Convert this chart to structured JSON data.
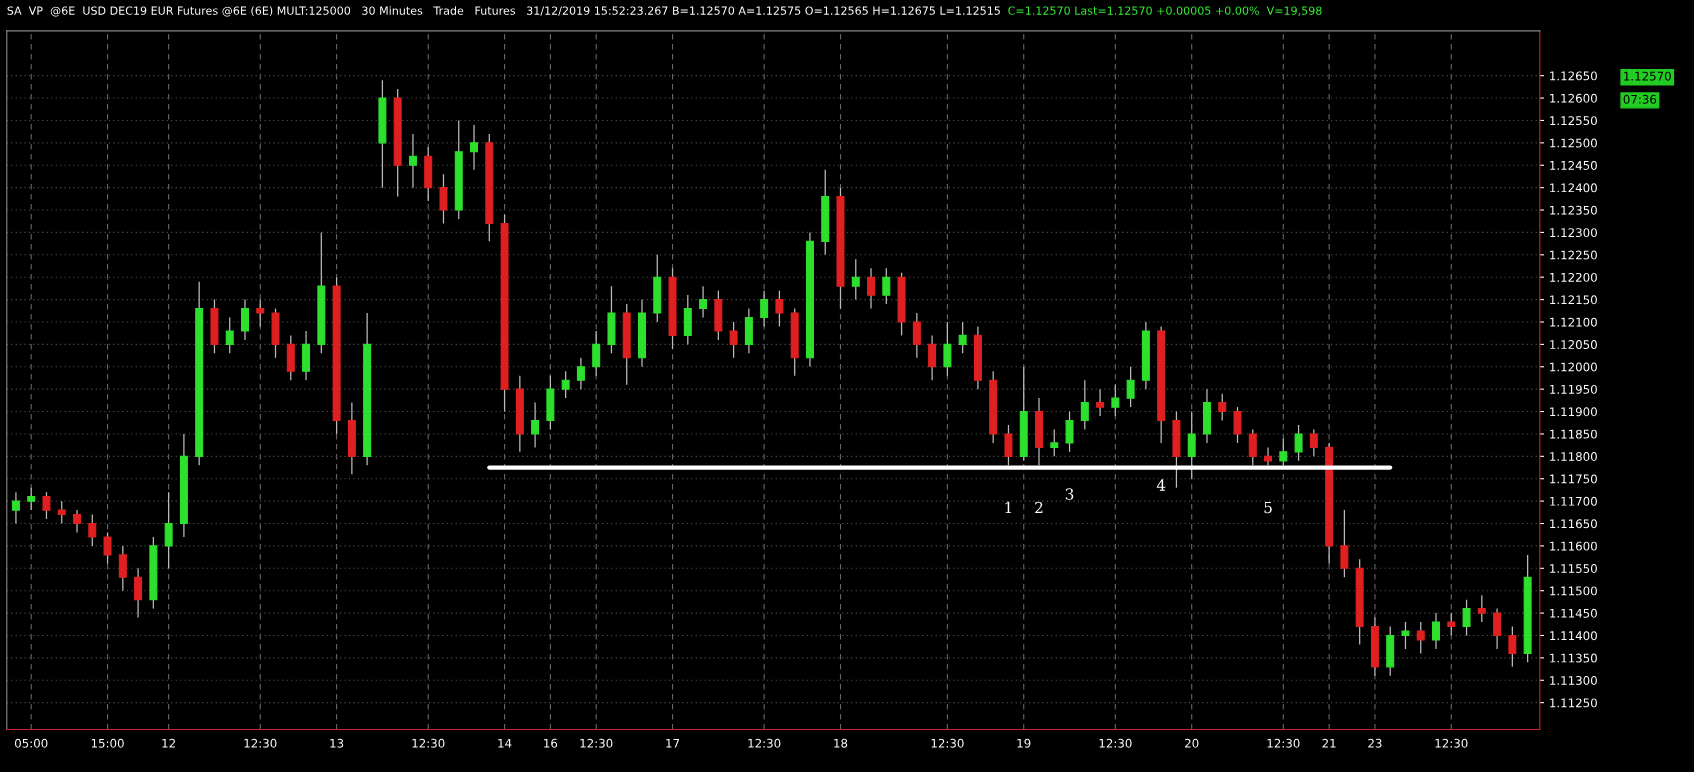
{
  "chart_data": {
    "type": "candlestick",
    "title": "SA  VP  @6E  USD DEC19 EUR Futures @6E (6E) MULT:125000   30 Minutes   Trade   Futures   31/12/2019 15:52:23.267 B=1.12570 A=1.12575 O=1.12565 H=1.12675 L=1.12515",
    "subtitle": "C=1.12570 Last=1.12570 +0.00005 +0.00%  V=19,598",
    "categories": [
      null,
      "05:00",
      null,
      null,
      null,
      null,
      "15:00",
      null,
      null,
      null,
      "12",
      null,
      null,
      null,
      null,
      null,
      "12:30",
      null,
      null,
      null,
      null,
      "13",
      null,
      null,
      null,
      null,
      null,
      "12:30",
      null,
      null,
      null,
      null,
      "14",
      null,
      null,
      "16",
      null,
      null,
      "12:30",
      null,
      null,
      null,
      null,
      "17",
      null,
      null,
      null,
      null,
      null,
      "12:30",
      null,
      null,
      null,
      null,
      "18",
      null,
      null,
      null,
      null,
      null,
      null,
      "12:30",
      null,
      null,
      null,
      null,
      "19",
      null,
      null,
      null,
      null,
      null,
      "12:30",
      null,
      null,
      null,
      null,
      "20",
      null,
      null,
      null,
      null,
      null,
      "12:30",
      null,
      null,
      "21",
      null,
      null,
      "23",
      null,
      null,
      null,
      null,
      "12:30",
      null,
      null,
      null,
      null,
      null
    ],
    "series": [
      {
        "ohlc": [
          [
            1.1168,
            1.1172,
            1.1165,
            1.117
          ],
          [
            1.117,
            1.1173,
            1.1168,
            1.1171
          ],
          [
            1.1171,
            1.1172,
            1.1166,
            1.1168
          ],
          [
            1.1168,
            1.117,
            1.1165,
            1.1167
          ],
          [
            1.1167,
            1.1168,
            1.1163,
            1.1165
          ],
          [
            1.1165,
            1.1167,
            1.116,
            1.1162
          ],
          [
            1.1162,
            1.1163,
            1.1156,
            1.1158
          ],
          [
            1.1158,
            1.116,
            1.115,
            1.1153
          ],
          [
            1.1153,
            1.1155,
            1.1144,
            1.1148
          ],
          [
            1.1148,
            1.1162,
            1.1146,
            1.116
          ],
          [
            1.116,
            1.1172,
            1.1155,
            1.1165
          ],
          [
            1.1165,
            1.1185,
            1.1162,
            1.118
          ],
          [
            1.118,
            1.1219,
            1.1178,
            1.1213
          ],
          [
            1.1213,
            1.1215,
            1.1203,
            1.1205
          ],
          [
            1.1205,
            1.1211,
            1.1203,
            1.1208
          ],
          [
            1.1208,
            1.1215,
            1.1206,
            1.1213
          ],
          [
            1.1213,
            1.1215,
            1.1209,
            1.1212
          ],
          [
            1.1212,
            1.1213,
            1.1202,
            1.1205
          ],
          [
            1.1205,
            1.1207,
            1.1197,
            1.1199
          ],
          [
            1.1199,
            1.1208,
            1.1197,
            1.1205
          ],
          [
            1.1205,
            1.123,
            1.1203,
            1.1218
          ],
          [
            1.1218,
            1.122,
            1.1185,
            1.1188
          ],
          [
            1.1188,
            1.1192,
            1.1176,
            1.118
          ],
          [
            1.118,
            1.1212,
            1.1178,
            1.1205
          ],
          [
            1.125,
            1.1264,
            1.124,
            1.126
          ],
          [
            1.126,
            1.1262,
            1.1238,
            1.1245
          ],
          [
            1.1245,
            1.1252,
            1.124,
            1.1247
          ],
          [
            1.1247,
            1.1249,
            1.1237,
            1.124
          ],
          [
            1.124,
            1.1243,
            1.1232,
            1.1235
          ],
          [
            1.1235,
            1.1255,
            1.1233,
            1.1248
          ],
          [
            1.1248,
            1.1254,
            1.1244,
            1.125
          ],
          [
            1.125,
            1.1252,
            1.1228,
            1.1232
          ],
          [
            1.1232,
            1.1234,
            1.119,
            1.1195
          ],
          [
            1.1195,
            1.1198,
            1.1181,
            1.1185
          ],
          [
            1.1185,
            1.1192,
            1.1182,
            1.1188
          ],
          [
            1.1188,
            1.1198,
            1.1186,
            1.1195
          ],
          [
            1.1195,
            1.1199,
            1.1193,
            1.1197
          ],
          [
            1.1197,
            1.1202,
            1.1195,
            1.12
          ],
          [
            1.12,
            1.1208,
            1.1198,
            1.1205
          ],
          [
            1.1205,
            1.1218,
            1.1203,
            1.1212
          ],
          [
            1.1212,
            1.1214,
            1.1196,
            1.1202
          ],
          [
            1.1202,
            1.1215,
            1.12,
            1.1212
          ],
          [
            1.1212,
            1.1225,
            1.121,
            1.122
          ],
          [
            1.122,
            1.1222,
            1.1204,
            1.1207
          ],
          [
            1.1207,
            1.1216,
            1.1205,
            1.1213
          ],
          [
            1.1213,
            1.1218,
            1.1211,
            1.1215
          ],
          [
            1.1215,
            1.1217,
            1.1206,
            1.1208
          ],
          [
            1.1208,
            1.121,
            1.1202,
            1.1205
          ],
          [
            1.1205,
            1.1213,
            1.1203,
            1.1211
          ],
          [
            1.1211,
            1.1217,
            1.1209,
            1.1215
          ],
          [
            1.1215,
            1.1217,
            1.1209,
            1.1212
          ],
          [
            1.1212,
            1.1213,
            1.1198,
            1.1202
          ],
          [
            1.1202,
            1.123,
            1.12,
            1.1228
          ],
          [
            1.1228,
            1.1244,
            1.1225,
            1.1238
          ],
          [
            1.1238,
            1.124,
            1.1213,
            1.1218
          ],
          [
            1.1218,
            1.1224,
            1.1215,
            1.122
          ],
          [
            1.122,
            1.1222,
            1.1213,
            1.1216
          ],
          [
            1.1216,
            1.1222,
            1.1214,
            1.122
          ],
          [
            1.122,
            1.1221,
            1.1207,
            1.121
          ],
          [
            1.121,
            1.1212,
            1.1202,
            1.1205
          ],
          [
            1.1205,
            1.1207,
            1.1197,
            1.12
          ],
          [
            1.12,
            1.121,
            1.1198,
            1.1205
          ],
          [
            1.1205,
            1.121,
            1.1203,
            1.1207
          ],
          [
            1.1207,
            1.1209,
            1.1195,
            1.1197
          ],
          [
            1.1197,
            1.1199,
            1.1183,
            1.1185
          ],
          [
            1.1185,
            1.1187,
            1.1178,
            1.118
          ],
          [
            1.118,
            1.12,
            1.1179,
            1.119
          ],
          [
            1.119,
            1.1193,
            1.1178,
            1.1182
          ],
          [
            1.1182,
            1.1186,
            1.118,
            1.1183
          ],
          [
            1.1183,
            1.119,
            1.1181,
            1.1188
          ],
          [
            1.1188,
            1.1197,
            1.1186,
            1.1192
          ],
          [
            1.1192,
            1.1195,
            1.1189,
            1.1191
          ],
          [
            1.1191,
            1.1196,
            1.1189,
            1.1193
          ],
          [
            1.1193,
            1.12,
            1.1191,
            1.1197
          ],
          [
            1.1197,
            1.121,
            1.1195,
            1.1208
          ],
          [
            1.1208,
            1.1209,
            1.1183,
            1.1188
          ],
          [
            1.1188,
            1.119,
            1.1173,
            1.118
          ],
          [
            1.118,
            1.119,
            1.1175,
            1.1185
          ],
          [
            1.1185,
            1.1195,
            1.1183,
            1.1192
          ],
          [
            1.1192,
            1.1194,
            1.1188,
            1.119
          ],
          [
            1.119,
            1.1191,
            1.1183,
            1.1185
          ],
          [
            1.1185,
            1.1186,
            1.1178,
            1.118
          ],
          [
            1.118,
            1.1182,
            1.1178,
            1.1179
          ],
          [
            1.1179,
            1.1184,
            1.1178,
            1.1181
          ],
          [
            1.1181,
            1.1187,
            1.1179,
            1.1185
          ],
          [
            1.1185,
            1.1186,
            1.118,
            1.1182
          ],
          [
            1.1182,
            1.1183,
            1.1156,
            1.116
          ],
          [
            1.116,
            1.1168,
            1.1153,
            1.1155
          ],
          [
            1.1155,
            1.1157,
            1.1138,
            1.1142
          ],
          [
            1.1142,
            1.1144,
            1.1131,
            1.1133
          ],
          [
            1.1133,
            1.1142,
            1.1131,
            1.114
          ],
          [
            1.114,
            1.1143,
            1.1137,
            1.1141
          ],
          [
            1.1141,
            1.1143,
            1.1136,
            1.1139
          ],
          [
            1.1139,
            1.1145,
            1.1137,
            1.1143
          ],
          [
            1.1143,
            1.1145,
            1.114,
            1.1142
          ],
          [
            1.1142,
            1.1148,
            1.114,
            1.1146
          ],
          [
            1.1146,
            1.1149,
            1.1143,
            1.1145
          ],
          [
            1.1145,
            1.1146,
            1.1137,
            1.114
          ],
          [
            1.114,
            1.1142,
            1.1133,
            1.1136
          ],
          [
            1.1136,
            1.1158,
            1.1134,
            1.1153
          ]
        ],
        "colors": [
          "#2ee02e",
          "#2ee02e",
          "#e02020",
          "#e02020",
          "#e02020",
          "#e02020",
          "#e02020",
          "#e02020",
          "#e02020",
          "#2ee02e",
          "#2ee02e",
          "#2ee02e",
          "#2ee02e",
          "#e02020",
          "#2ee02e",
          "#2ee02e",
          "#e02020",
          "#e02020",
          "#e02020",
          "#2ee02e",
          "#2ee02e",
          "#e02020",
          "#e02020",
          "#2ee02e",
          "#2ee02e",
          "#e02020",
          "#2ee02e",
          "#e02020",
          "#e02020",
          "#2ee02e",
          "#2ee02e",
          "#e02020",
          "#e02020",
          "#e02020",
          "#2ee02e",
          "#2ee02e",
          "#2ee02e",
          "#2ee02e",
          "#2ee02e",
          "#2ee02e",
          "#e02020",
          "#2ee02e",
          "#2ee02e",
          "#e02020",
          "#2ee02e",
          "#2ee02e",
          "#e02020",
          "#e02020",
          "#2ee02e",
          "#2ee02e",
          "#e02020",
          "#e02020",
          "#2ee02e",
          "#2ee02e",
          "#e02020",
          "#2ee02e",
          "#e02020",
          "#2ee02e",
          "#e02020",
          "#e02020",
          "#e02020",
          "#2ee02e",
          "#2ee02e",
          "#e02020",
          "#e02020",
          "#e02020",
          "#2ee02e",
          "#e02020",
          "#2ee02e",
          "#2ee02e",
          "#2ee02e",
          "#e02020",
          "#2ee02e",
          "#2ee02e",
          "#2ee02e",
          "#e02020",
          "#e02020",
          "#2ee02e",
          "#2ee02e",
          "#e02020",
          "#e02020",
          "#e02020",
          "#e02020",
          "#2ee02e",
          "#2ee02e",
          "#e02020",
          "#e02020",
          "#e02020",
          "#e02020",
          "#e02020",
          "#2ee02e",
          "#2ee02e",
          "#e02020",
          "#2ee02e",
          "#e02020",
          "#2ee02e",
          "#e02020",
          "#e02020",
          "#e02020",
          "#2ee02e"
        ],
        "value_labels": [
          null,
          null,
          null,
          null,
          null,
          null,
          null,
          null,
          null,
          null,
          null,
          null,
          null,
          null,
          null,
          null,
          null,
          null,
          null,
          null,
          null,
          null,
          null,
          null,
          null,
          null,
          null,
          null,
          null,
          null,
          null,
          null,
          null,
          null,
          null,
          null,
          null,
          null,
          null,
          null,
          null,
          null,
          null,
          null,
          null,
          null,
          null,
          null,
          null,
          null,
          null,
          null,
          null,
          null,
          null,
          null,
          null,
          null,
          null,
          null,
          null,
          null,
          null,
          null,
          null,
          "1",
          null,
          "2",
          null,
          "3",
          null,
          null,
          null,
          null,
          null,
          "4",
          null,
          null,
          null,
          null,
          null,
          null,
          "5",
          null,
          null,
          null,
          null,
          null,
          null,
          null,
          null,
          null,
          null,
          null,
          null,
          null,
          null,
          null,
          null,
          null
        ]
      },
      {
        "type": "line",
        "color": "#ffffff",
        "values": [
          null,
          null,
          null,
          null,
          null,
          null,
          null,
          null,
          null,
          null,
          null,
          null,
          null,
          null,
          null,
          null,
          null,
          null,
          null,
          null,
          null,
          null,
          null,
          null,
          null,
          null,
          null,
          null,
          null,
          null,
          null,
          1.11775,
          null,
          null,
          null,
          null,
          null,
          null,
          null,
          null,
          null,
          null,
          null,
          null,
          null,
          null,
          null,
          null,
          null,
          null,
          null,
          null,
          null,
          null,
          null,
          null,
          null,
          null,
          null,
          null,
          null,
          null,
          null,
          null,
          null,
          null,
          null,
          null,
          null,
          null,
          null,
          null,
          null,
          null,
          null,
          null,
          null,
          null,
          null,
          null,
          null,
          null,
          null,
          null,
          null,
          null,
          null,
          null,
          null,
          null,
          1.11775,
          null,
          null,
          null,
          null,
          null,
          null,
          null,
          null,
          null
        ]
      }
    ],
    "annotations": [
      "1.12570",
      "07:36"
    ],
    "ylim": [
      1.1119,
      1.1275
    ],
    "yticks": [
      {
        "value": 1.1125,
        "label": "1.11250"
      },
      {
        "value": 1.113,
        "label": "1.11300"
      },
      {
        "value": 1.1135,
        "label": "1.11350"
      },
      {
        "value": 1.114,
        "label": "1.11400"
      },
      {
        "value": 1.1145,
        "label": "1.11450"
      },
      {
        "value": 1.115,
        "label": "1.11500"
      },
      {
        "value": 1.1155,
        "label": "1.11550"
      },
      {
        "value": 1.116,
        "label": "1.11600"
      },
      {
        "value": 1.1165,
        "label": "1.11650"
      },
      {
        "value": 1.117,
        "label": "1.11700"
      },
      {
        "value": 1.1175,
        "label": "1.11750"
      },
      {
        "value": 1.118,
        "label": "1.11800"
      },
      {
        "value": 1.1185,
        "label": "1.11850"
      },
      {
        "value": 1.119,
        "label": "1.11900"
      },
      {
        "value": 1.1195,
        "label": "1.11950"
      },
      {
        "value": 1.12,
        "label": "1.12000"
      },
      {
        "value": 1.1205,
        "label": "1.12050"
      },
      {
        "value": 1.121,
        "label": "1.12100"
      },
      {
        "value": 1.1215,
        "label": "1.12150"
      },
      {
        "value": 1.122,
        "label": "1.12200"
      },
      {
        "value": 1.1225,
        "label": "1.12250"
      },
      {
        "value": 1.123,
        "label": "1.12300"
      },
      {
        "value": 1.1235,
        "label": "1.12350"
      },
      {
        "value": 1.124,
        "label": "1.12400"
      },
      {
        "value": 1.1245,
        "label": "1.12450"
      },
      {
        "value": 1.125,
        "label": "1.12500"
      },
      {
        "value": 1.1255,
        "label": "1.12550"
      },
      {
        "value": 1.126,
        "label": "1.12600"
      },
      {
        "value": 1.1265,
        "label": "1.12650"
      }
    ],
    "grid": true
  }
}
